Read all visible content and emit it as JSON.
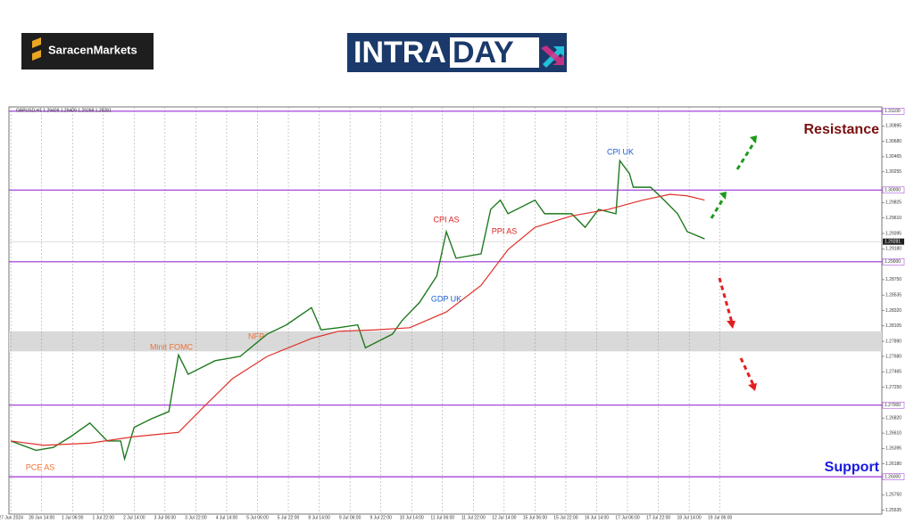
{
  "brand": "SaracenMarkets",
  "banner": {
    "left": "INTRA",
    "right": "DAY"
  },
  "chart_data": {
    "type": "line",
    "header": "GBPUSD,H1 1.29409 1.29409 1.29268 1.29281",
    "xlim": [
      -1,
      452
    ],
    "xticks": [
      {
        "value": 0,
        "label": "27 Jun 2024"
      },
      {
        "value": 16,
        "label": "28 Jun 14:00"
      },
      {
        "value": 32,
        "label": "1 Jul 06:00"
      },
      {
        "value": 48,
        "label": "1 Jul 22:00"
      },
      {
        "value": 64,
        "label": "2 Jul 14:00"
      },
      {
        "value": 80,
        "label": "3 Jul 06:00"
      },
      {
        "value": 96,
        "label": "3 Jul 22:00"
      },
      {
        "value": 112,
        "label": "4 Jul 14:00"
      },
      {
        "value": 128,
        "label": "5 Jul 06:00"
      },
      {
        "value": 144,
        "label": "5 Jul 22:00"
      },
      {
        "value": 160,
        "label": "8 Jul 14:00"
      },
      {
        "value": 176,
        "label": "9 Jul 06:00"
      },
      {
        "value": 192,
        "label": "9 Jul 22:00"
      },
      {
        "value": 208,
        "label": "10 Jul 14:00"
      },
      {
        "value": 224,
        "label": "11 Jul 06:00"
      },
      {
        "value": 240,
        "label": "11 Jul 22:00"
      },
      {
        "value": 256,
        "label": "12 Jul 14:00"
      },
      {
        "value": 272,
        "label": "15 Jul 06:00"
      },
      {
        "value": 288,
        "label": "15 Jul 22:00"
      },
      {
        "value": 304,
        "label": "16 Jul 14:00"
      },
      {
        "value": 320,
        "label": "17 Jul 06:00"
      },
      {
        "value": 336,
        "label": "17 Jul 22:00"
      },
      {
        "value": 352,
        "label": "18 Jul 14:00"
      },
      {
        "value": 368,
        "label": "19 Jul 06:00"
      }
    ],
    "ylim": [
      1.2548,
      1.3116
    ],
    "yticks": [
      {
        "value": 1.30895,
        "label": "1.30895"
      },
      {
        "value": 1.3068,
        "label": "1.30680"
      },
      {
        "value": 1.30465,
        "label": "1.30465"
      },
      {
        "value": 1.30255,
        "label": "1.30255"
      },
      {
        "value": 1.29825,
        "label": "1.29825"
      },
      {
        "value": 1.2961,
        "label": "1.29610"
      },
      {
        "value": 1.29395,
        "label": "1.29395"
      },
      {
        "value": 1.2918,
        "label": "1.29180"
      },
      {
        "value": 1.2875,
        "label": "1.28750"
      },
      {
        "value": 1.28535,
        "label": "1.28535"
      },
      {
        "value": 1.2832,
        "label": "1.28320"
      },
      {
        "value": 1.28105,
        "label": "1.28105"
      },
      {
        "value": 1.2789,
        "label": "1.27890"
      },
      {
        "value": 1.2768,
        "label": "1.27680"
      },
      {
        "value": 1.27465,
        "label": "1.27465"
      },
      {
        "value": 1.2725,
        "label": "1.27250"
      },
      {
        "value": 1.2682,
        "label": "1.26820"
      },
      {
        "value": 1.2661,
        "label": "1.26610"
      },
      {
        "value": 1.26395,
        "label": "1.26395"
      },
      {
        "value": 1.2618,
        "label": "1.26180"
      },
      {
        "value": 1.2575,
        "label": "1.25750"
      },
      {
        "value": 1.25535,
        "label": "1.25535"
      }
    ],
    "levels": [
      {
        "value": 1.311,
        "label": "1.31100"
      },
      {
        "value": 1.3,
        "label": "1.30000"
      },
      {
        "value": 1.29,
        "label": "1.29000"
      },
      {
        "value": 1.27,
        "label": "1.27000"
      },
      {
        "value": 1.26,
        "label": "1.26000"
      }
    ],
    "level_color": "#9b30d9",
    "last_price": {
      "value": 1.29281,
      "label": "1.29281"
    },
    "zone": [
      1.2775,
      1.2803
    ],
    "series": [
      {
        "name": "GBPUSD",
        "color": "#1f7a1f",
        "x": [
          0,
          13,
          22,
          31,
          41,
          50,
          57,
          59,
          64,
          73,
          82,
          87,
          92,
          106,
          119,
          133,
          143,
          156,
          161,
          170,
          180,
          184,
          198,
          203,
          212,
          221,
          226,
          231,
          244,
          249,
          254,
          258,
          272,
          277,
          291,
          298,
          305,
          314,
          316,
          321,
          323,
          332,
          339,
          346,
          351,
          360
        ],
        "values": [
          1.265,
          1.2637,
          1.2641,
          1.2656,
          1.2675,
          1.265,
          1.265,
          1.2625,
          1.2669,
          1.2681,
          1.2691,
          1.277,
          1.2743,
          1.2762,
          1.2768,
          1.2799,
          1.2812,
          1.2836,
          1.2805,
          1.2808,
          1.2812,
          1.278,
          1.2799,
          1.2818,
          1.2843,
          1.288,
          1.2942,
          1.2905,
          1.2911,
          1.2973,
          1.2986,
          1.2967,
          1.2986,
          1.2967,
          1.2967,
          1.2948,
          1.2973,
          1.2967,
          1.3041,
          1.3023,
          1.3004,
          1.3004,
          1.2986,
          1.2967,
          1.2942,
          1.2932
        ]
      },
      {
        "name": "MA",
        "color": "#e0302a",
        "x": [
          0,
          17,
          41,
          64,
          87,
          101,
          115,
          133,
          156,
          170,
          189,
          207,
          226,
          244,
          258,
          272,
          291,
          310,
          328,
          342,
          351,
          360
        ],
        "values": [
          1.265,
          1.2644,
          1.2647,
          1.2656,
          1.2662,
          1.27,
          1.2737,
          1.2768,
          1.2793,
          1.2803,
          1.2805,
          1.2808,
          1.283,
          1.2867,
          1.2917,
          1.2948,
          1.2964,
          1.2973,
          1.2986,
          1.2994,
          1.2992,
          1.2986
        ]
      }
    ],
    "annotations": [
      {
        "text": "PCE AS",
        "color": "#f07030"
      },
      {
        "text": "Minit FOMC",
        "color": "#f07030"
      },
      {
        "text": "NFP",
        "color": "#f07030"
      },
      {
        "text": "CPI AS",
        "color": "#e02020"
      },
      {
        "text": "PPI AS",
        "color": "#e02020"
      },
      {
        "text": "GDP UK",
        "color": "#2060d0"
      },
      {
        "text": "CPI UK",
        "color": "#2060d0"
      }
    ],
    "resistance": "Resistance",
    "support": "Support"
  }
}
